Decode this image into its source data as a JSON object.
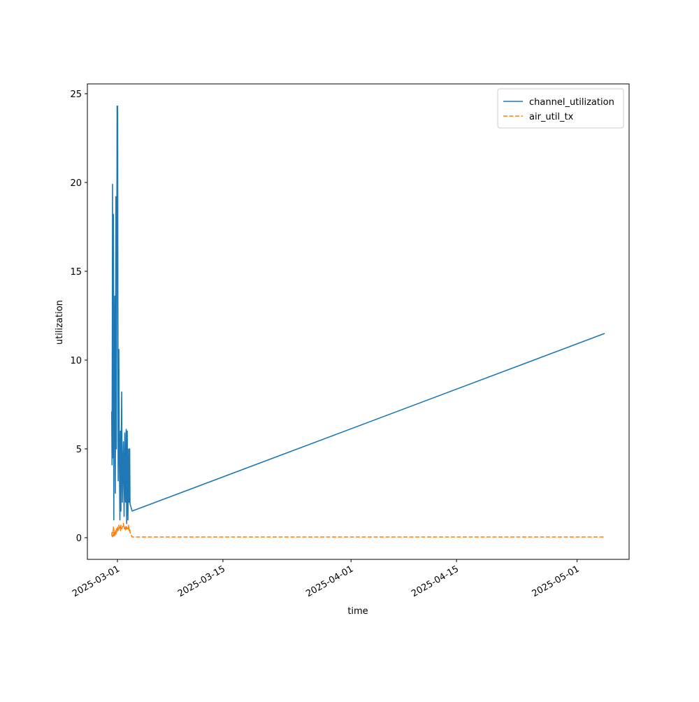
{
  "chart_data": {
    "type": "line",
    "xlabel": "time",
    "ylabel": "utilization",
    "x": [
      "2025-02-28T05:40",
      "2025-02-28T06:50",
      "2025-02-28T08:25",
      "2025-02-28T10:00",
      "2025-02-28T11:20",
      "2025-02-28T12:25",
      "2025-02-28T14:10",
      "2025-02-28T15:30",
      "2025-02-28T17:20",
      "2025-02-28T19:05",
      "2025-02-28T20:40",
      "2025-02-28T22:55",
      "2025-03-01T00:40",
      "2025-03-01T02:15",
      "2025-03-01T04:30",
      "2025-03-01T06:15",
      "2025-03-01T07:50",
      "2025-03-01T09:35",
      "2025-03-01T11:05",
      "2025-03-01T13:20",
      "2025-03-01T15:35",
      "2025-03-01T18:55",
      "2025-03-01T21:10",
      "2025-03-01T23:25",
      "2025-03-02T01:35",
      "2025-03-02T03:50",
      "2025-03-02T05:25",
      "2025-03-02T07:10",
      "2025-03-02T09:25",
      "2025-03-02T11:35",
      "2025-03-02T13:25",
      "2025-03-02T15:00",
      "2025-03-02T16:05",
      "2025-03-02T22:45",
      "2025-05-04T15:50"
    ],
    "series": [
      {
        "name": "channel_utilization",
        "color": "#1f77b4",
        "style": "solid",
        "values": [
          7.1,
          4.1,
          19.9,
          4.5,
          18.2,
          1.0,
          10.0,
          13.6,
          2.5,
          19.2,
          5.0,
          24.3,
          24.3,
          3.2,
          10.6,
          4.0,
          1.0,
          6.0,
          1.5,
          8.2,
          2.0,
          5.4,
          1.2,
          5.9,
          2.0,
          6.1,
          0.8,
          6.0,
          1.0,
          5.0,
          2.0,
          5.0,
          1.9,
          1.5,
          11.5
        ]
      },
      {
        "name": "air_util_tx",
        "color": "#ff7f0e",
        "style": "dashed",
        "values": [
          0.1,
          0.3,
          0.05,
          0.2,
          0.6,
          0.1,
          0.3,
          0.1,
          0.4,
          0.2,
          0.5,
          0.3,
          0.6,
          0.4,
          0.7,
          0.5,
          0.6,
          0.4,
          0.7,
          0.5,
          0.6,
          0.8,
          0.5,
          0.6,
          0.4,
          0.7,
          0.5,
          0.6,
          0.5,
          0.7,
          0.4,
          0.5,
          0.3,
          0.04,
          0.04
        ]
      }
    ],
    "xlim": [
      "2025-02-25T00:15",
      "2025-05-07T21:40"
    ],
    "xticks": [
      "2025-03-01",
      "2025-03-15",
      "2025-04-01",
      "2025-04-15",
      "2025-05-01"
    ],
    "ylim": [
      -1.22,
      25.55
    ],
    "yticks": [
      0,
      5,
      10,
      15,
      20,
      25
    ],
    "legend": "upper right"
  }
}
